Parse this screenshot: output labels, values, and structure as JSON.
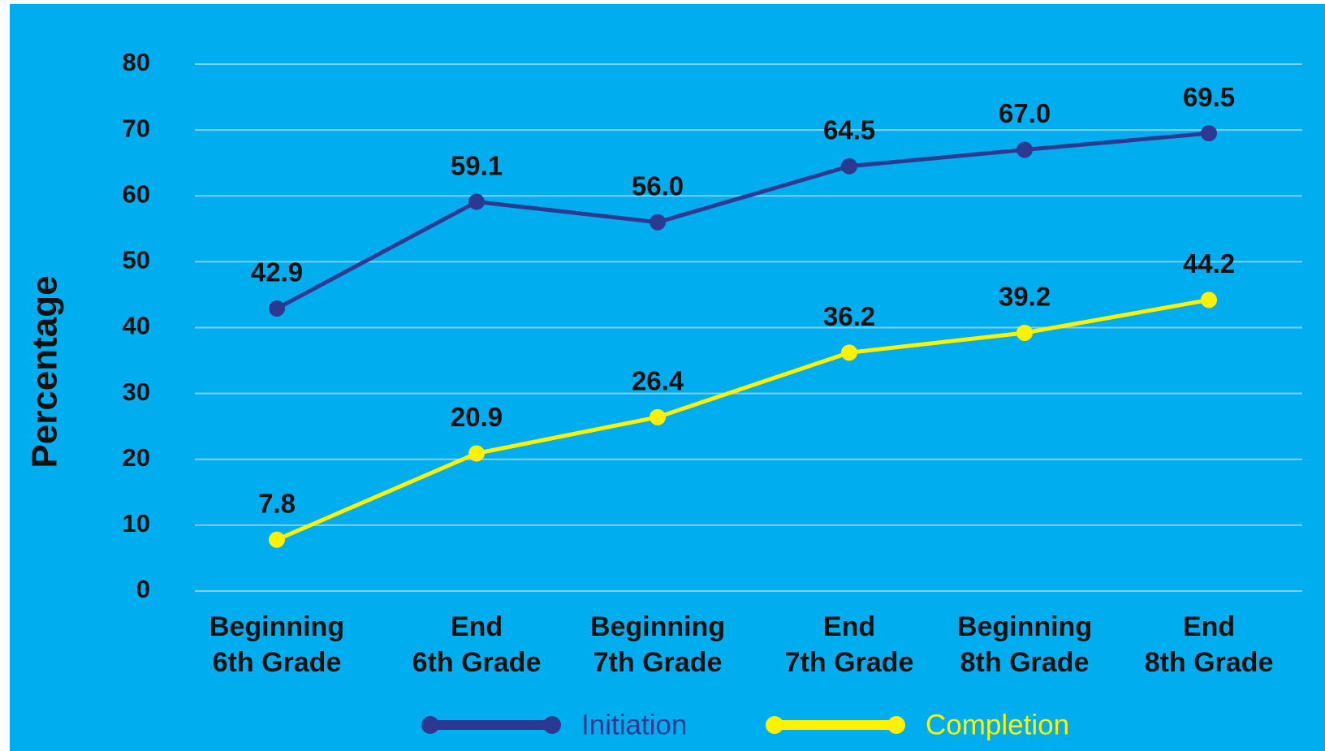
{
  "chart_data": {
    "type": "line",
    "y_label": "Percentage",
    "categories": [
      "Beginning\n6th Grade",
      "End\n6th Grade",
      "Beginning\n7th Grade",
      "End\n7th Grade",
      "Beginning\n8th Grade",
      "End\n8th Grade"
    ],
    "series": [
      {
        "name": "Initiation",
        "color": "#2b3990",
        "values": [
          42.9,
          59.1,
          56.0,
          64.5,
          67.0,
          69.5
        ],
        "value_labels": [
          "42.9",
          "59.1",
          "56.0",
          "64.5",
          "67.0",
          "69.5"
        ]
      },
      {
        "name": "Completion",
        "color": "#fff200",
        "values": [
          7.8,
          20.9,
          26.4,
          36.2,
          39.2,
          44.2
        ],
        "value_labels": [
          "7.8",
          "20.9",
          "26.4",
          "36.2",
          "39.2",
          "44.2"
        ]
      }
    ],
    "ylim": [
      0,
      80
    ],
    "yticks": [
      0,
      10,
      20,
      30,
      40,
      50,
      60,
      70,
      80
    ],
    "grid": true,
    "legend": "bottom",
    "background": "#00aeef",
    "grid_color": "#7fd0f5"
  }
}
